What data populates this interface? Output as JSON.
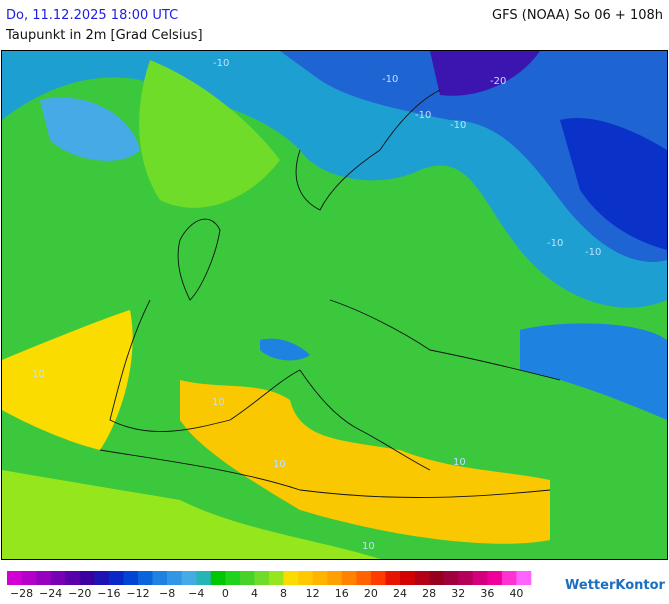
{
  "header": {
    "datetime": "Do, 11.12.2025 18:00 UTC",
    "model": "GFS (NOAA) So 06 + 108h",
    "title": "Taupunkt in 2m [Grad Celsius]"
  },
  "map": {
    "contour_labels": [
      "-10",
      "-20",
      "-10",
      "-10",
      "-10",
      "-10",
      "-10",
      "10",
      "10",
      "10",
      "10",
      "10"
    ]
  },
  "legend": {
    "colors": [
      "#d200d2",
      "#b400c8",
      "#9600be",
      "#7800b4",
      "#5a00aa",
      "#3c00a0",
      "#1e14b4",
      "#0a28c8",
      "#0046d2",
      "#0a64dc",
      "#1e82e1",
      "#3296e6",
      "#46aae6",
      "#28b4b4",
      "#00c800",
      "#1ed21e",
      "#46d228",
      "#6edc28",
      "#96e61e",
      "#fadc00",
      "#ffc800",
      "#ffb400",
      "#ffa000",
      "#ff8200",
      "#ff6400",
      "#ff3c00",
      "#e61400",
      "#d20000",
      "#b40014",
      "#96001e",
      "#a0003c",
      "#b4005a",
      "#d2007d",
      "#f0009b",
      "#ff32d2",
      "#ff64ff"
    ],
    "labels": [
      "−28",
      "−24",
      "−20",
      "−16",
      "−12",
      "−8",
      "−4",
      "0",
      "4",
      "8",
      "12",
      "16",
      "20",
      "24",
      "28",
      "32",
      "36",
      "40"
    ]
  },
  "brand": "WetterKontor"
}
